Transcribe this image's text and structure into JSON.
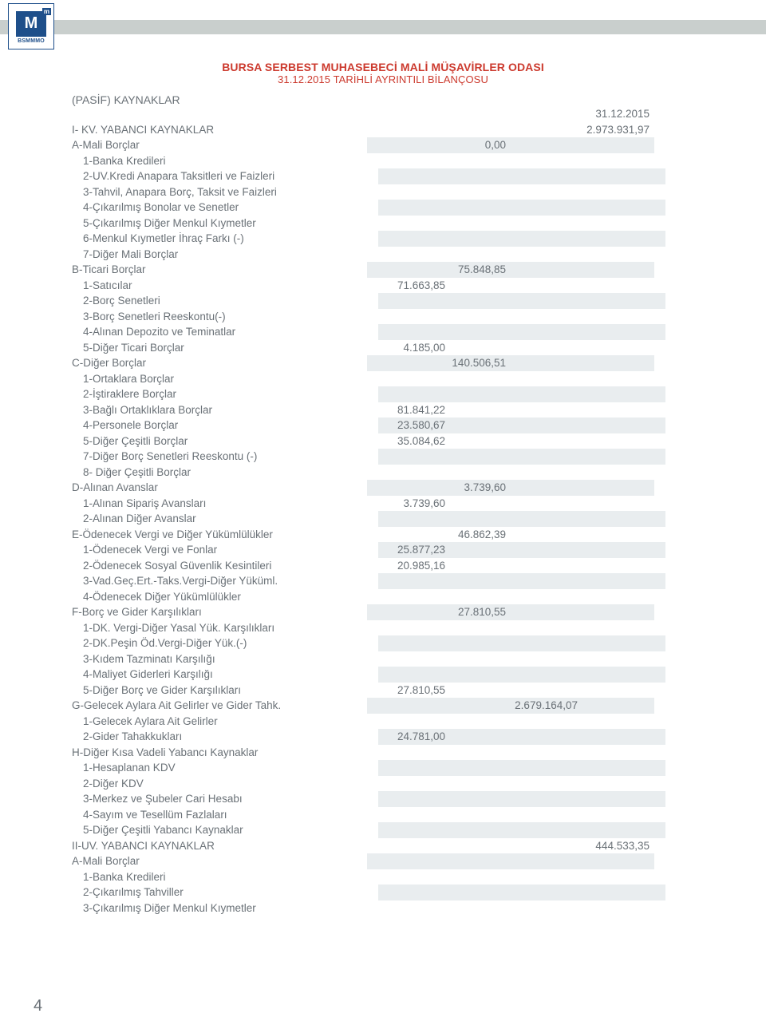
{
  "header_bar_color": "#c9cfcd",
  "logo": {
    "letter": "M",
    "sup": "m",
    "org": "BSMMMO"
  },
  "title_line1": "BURSA SERBEST MUHASEBECİ MALİ MÜŞAVİRLER ODASI",
  "title_line2": "31.12.2015 TARİHLİ AYRINTILI BİLANÇOSU",
  "title_color": "#cc3a2e",
  "section_label": "(PASİF) KAYNAKLAR",
  "col_date": "31.12.2015",
  "text_color": "#6a7177",
  "stripe_color": "#e9edef",
  "page_number": "4",
  "rows": [
    {
      "label": "I- KV. YABANCI KAYNAKLAR",
      "indent": 0,
      "c4": "2.973.931,97"
    },
    {
      "label": "A-Mali Borçlar",
      "indent": 0,
      "c2": "0,00"
    },
    {
      "label": "1-Banka Kredileri",
      "indent": 1
    },
    {
      "label": "2-UV.Kredi Anapara Taksitleri ve Faizleri",
      "indent": 1
    },
    {
      "label": "3-Tahvil, Anapara Borç, Taksit ve Faizleri",
      "indent": 1
    },
    {
      "label": "4-Çıkarılmış Bonolar ve Senetler",
      "indent": 1
    },
    {
      "label": "5-Çıkarılmış Diğer Menkul Kıymetler",
      "indent": 1
    },
    {
      "label": "6-Menkul Kıymetler İhraç Farkı (-)",
      "indent": 1
    },
    {
      "label": "7-Diğer Mali Borçlar",
      "indent": 1
    },
    {
      "label": "B-Ticari Borçlar",
      "indent": 0,
      "c2": "75.848,85"
    },
    {
      "label": "1-Satıcılar",
      "indent": 1,
      "c1": "71.663,85"
    },
    {
      "label": "2-Borç Senetleri",
      "indent": 1
    },
    {
      "label": "3-Borç Senetleri Reeskontu(-)",
      "indent": 1
    },
    {
      "label": "4-Alınan Depozito ve Teminatlar",
      "indent": 1
    },
    {
      "label": "5-Diğer Ticari Borçlar",
      "indent": 1,
      "c1": "4.185,00"
    },
    {
      "label": "C-Diğer Borçlar",
      "indent": 0,
      "c2": "140.506,51"
    },
    {
      "label": "1-Ortaklara Borçlar",
      "indent": 1
    },
    {
      "label": "2-İştiraklere Borçlar",
      "indent": 1
    },
    {
      "label": "3-Bağlı Ortaklıklara Borçlar",
      "indent": 1,
      "c1": "81.841,22"
    },
    {
      "label": "4-Personele Borçlar",
      "indent": 1,
      "c1": "23.580,67"
    },
    {
      "label": "5-Diğer Çeşitli Borçlar",
      "indent": 1,
      "c1": "35.084,62"
    },
    {
      "label": "7-Diğer Borç Senetleri Reeskontu (-)",
      "indent": 1
    },
    {
      "label": "8- Diğer Çeşitli Borçlar",
      "indent": 1
    },
    {
      "label": "D-Alınan Avanslar",
      "indent": 0,
      "c2": "3.739,60"
    },
    {
      "label": "1-Alınan Sipariş Avansları",
      "indent": 1,
      "c1": "3.739,60"
    },
    {
      "label": "2-Alınan Diğer Avanslar",
      "indent": 1
    },
    {
      "label": "E-Ödenecek Vergi ve Diğer Yükümlülükler",
      "indent": 0,
      "c2": "46.862,39"
    },
    {
      "label": "1-Ödenecek Vergi ve Fonlar",
      "indent": 1,
      "c1": "25.877,23"
    },
    {
      "label": "2-Ödenecek Sosyal Güvenlik Kesintileri",
      "indent": 1,
      "c1": "20.985,16"
    },
    {
      "label": "3-Vad.Geç.Ert.-Taks.Vergi-Diğer Yüküml.",
      "indent": 1
    },
    {
      "label": "4-Ödenecek Diğer Yükümlülükler",
      "indent": 1
    },
    {
      "label": "F-Borç ve Gider Karşılıkları",
      "indent": 0,
      "c2": "27.810,55"
    },
    {
      "label": "1-DK. Vergi-Diğer Yasal Yük. Karşılıkları",
      "indent": 1
    },
    {
      "label": "2-DK.Peşin Öd.Vergi-Diğer Yük.(-)",
      "indent": 1
    },
    {
      "label": "3-Kıdem Tazminatı Karşılığı",
      "indent": 1
    },
    {
      "label": "4-Maliyet Giderleri Karşılığı",
      "indent": 1
    },
    {
      "label": "5-Diğer Borç ve Gider Karşılıkları",
      "indent": 1,
      "c1": "27.810,55"
    },
    {
      "label": "G-Gelecek Aylara Ait Gelirler ve Gider Tahk.",
      "indent": 0,
      "c3": "2.679.164,07"
    },
    {
      "label": "1-Gelecek Aylara Ait Gelirler",
      "indent": 1
    },
    {
      "label": "2-Gider Tahakkukları",
      "indent": 1,
      "c1": "24.781,00"
    },
    {
      "label": "H-Diğer Kısa Vadeli Yabancı Kaynaklar",
      "indent": 0
    },
    {
      "label": "1-Hesaplanan KDV",
      "indent": 1
    },
    {
      "label": "2-Diğer KDV",
      "indent": 1
    },
    {
      "label": "3-Merkez ve Şubeler Cari Hesabı",
      "indent": 1
    },
    {
      "label": "4-Sayım ve Tesellüm Fazlaları",
      "indent": 1
    },
    {
      "label": "5-Diğer Çeşitli Yabancı Kaynaklar",
      "indent": 1
    },
    {
      "label": "II-UV. YABANCI KAYNAKLAR",
      "indent": 0,
      "c4": "444.533,35"
    },
    {
      "label": "A-Mali Borçlar",
      "indent": 0
    },
    {
      "label": "1-Banka Kredileri",
      "indent": 1
    },
    {
      "label": "2-Çıkarılmış Tahviller",
      "indent": 1
    },
    {
      "label": "3-Çıkarılmış Diğer Menkul Kıymetler",
      "indent": 1
    }
  ]
}
